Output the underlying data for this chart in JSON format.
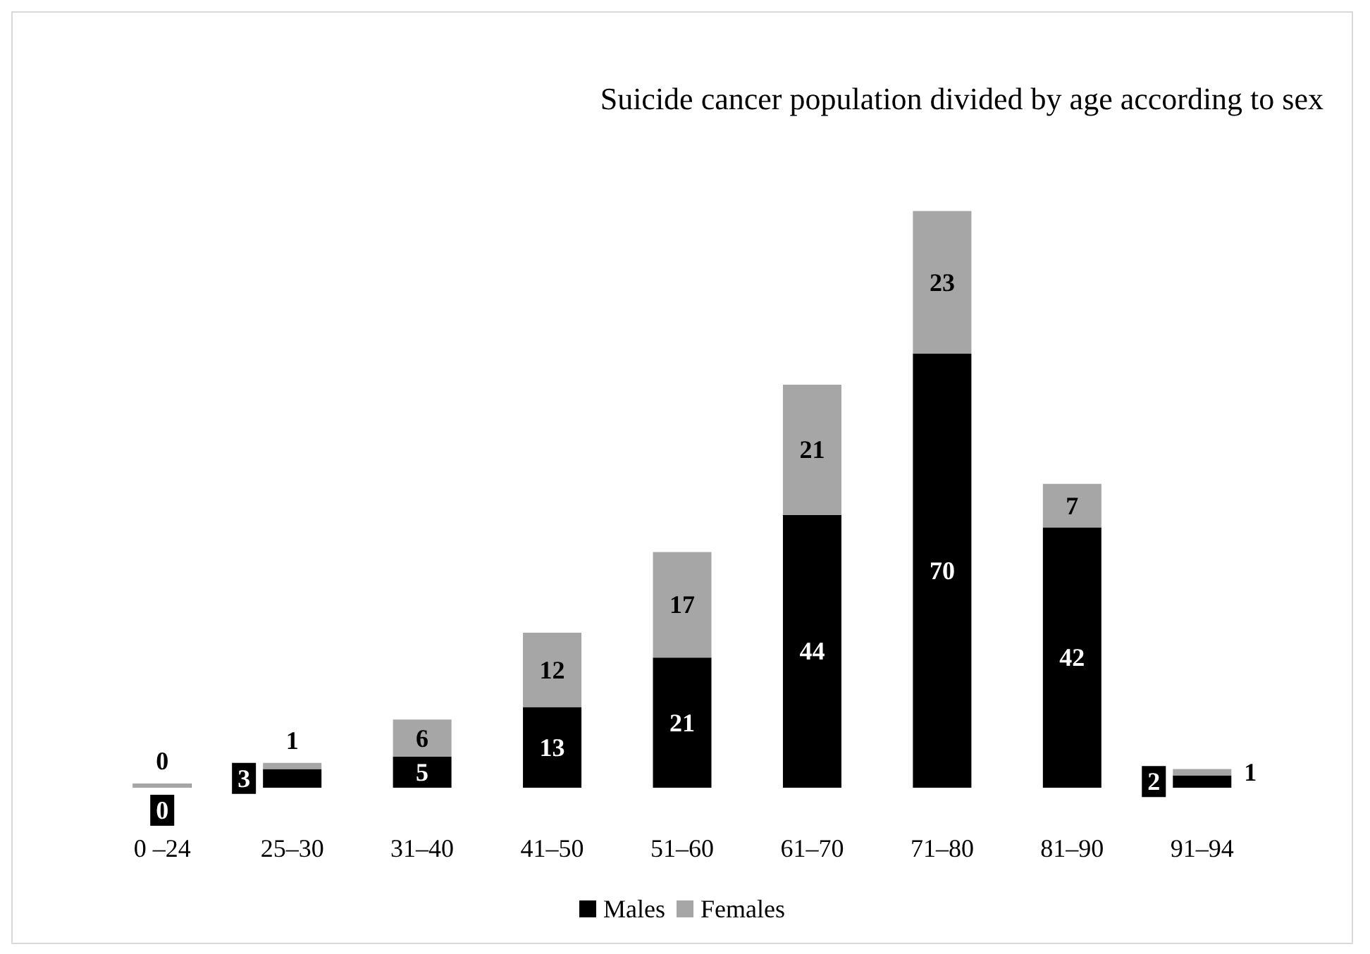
{
  "chart_data": {
    "type": "bar",
    "title": "Suicide cancer population divided by age according to sex",
    "categories": [
      "0 –24",
      "25–30",
      "31–40",
      "41–50",
      "51–60",
      "61–70",
      "71–80",
      "81–90",
      "91–94"
    ],
    "stacked": true,
    "data_labels": true,
    "legend": "bottom",
    "tick_labels": "x",
    "series": [
      {
        "name": "Males",
        "color": "#000000",
        "values": [
          0,
          3,
          5,
          13,
          21,
          44,
          70,
          42,
          2
        ]
      },
      {
        "name": "Females",
        "color": "#a6a6a6",
        "values": [
          0,
          1,
          6,
          12,
          17,
          21,
          23,
          7,
          1
        ]
      }
    ]
  }
}
